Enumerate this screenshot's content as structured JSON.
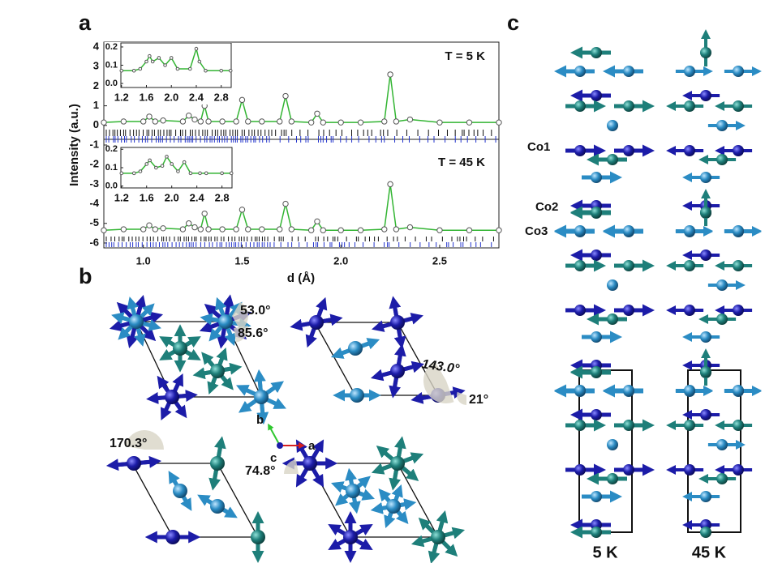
{
  "figure": {
    "panel_labels": [
      "a",
      "b",
      "c"
    ],
    "panel_b": {
      "angles": [
        "53.0°",
        "85.6°",
        "143.0°",
        "21°",
        "170.3°",
        "74.8°"
      ],
      "axes": [
        "b",
        "c",
        "a"
      ]
    },
    "panel_c": {
      "sites": [
        "Co1",
        "Co2",
        "Co3"
      ],
      "temperatures": [
        "5 K",
        "45 K"
      ]
    }
  },
  "chart_data": {
    "type": "line",
    "ylabel": "Intensity (a.u.)",
    "xlabel": "d (Å)",
    "xlim": [
      0.8,
      2.8
    ],
    "ylim": [
      -6.25,
      4.25
    ],
    "xticks": [
      {
        "value": 1,
        "label": "1.0"
      },
      1.5,
      {
        "value": 2,
        "label": "2.0"
      },
      2.5
    ],
    "yticks": [
      4,
      3,
      2,
      1,
      0,
      -1,
      -2,
      -3,
      -4,
      -5,
      -6
    ],
    "annotations": [
      "T = 5 K",
      "T = 45 K"
    ],
    "x": [
      0.8,
      0.9,
      1.0,
      1.03,
      1.06,
      1.1,
      1.2,
      1.23,
      1.26,
      1.29,
      1.31,
      1.33,
      1.4,
      1.47,
      1.5,
      1.53,
      1.6,
      1.69,
      1.72,
      1.75,
      1.85,
      1.88,
      1.91,
      2.0,
      2.1,
      2.22,
      2.25,
      2.28,
      2.35,
      2.5,
      2.65,
      2.8
    ],
    "series": [
      {
        "color": "#33b533",
        "values": [
          0.15,
          0.2,
          0.2,
          0.45,
          0.2,
          0.25,
          0.2,
          0.5,
          0.3,
          0.2,
          1.0,
          0.2,
          0.2,
          0.2,
          1.3,
          0.2,
          0.2,
          0.2,
          1.5,
          0.2,
          0.15,
          0.6,
          0.15,
          0.15,
          0.15,
          0.2,
          2.6,
          0.2,
          0.3,
          0.15,
          0.15,
          0.15
        ]
      },
      {
        "color": "#33b533",
        "values": [
          -5.35,
          -5.3,
          -5.3,
          -5.1,
          -5.3,
          -5.25,
          -5.3,
          -5.0,
          -5.2,
          -5.3,
          -4.5,
          -5.3,
          -5.3,
          -5.3,
          -4.3,
          -5.3,
          -5.3,
          -5.3,
          -4.0,
          -5.3,
          -5.35,
          -4.9,
          -5.35,
          -5.35,
          -5.35,
          -5.3,
          -3.0,
          -5.3,
          -5.2,
          -5.35,
          -5.35,
          -5.35
        ]
      }
    ],
    "insets": [
      {
        "xlim": [
          1.19,
          2.96
        ],
        "ylim": [
          -0.022,
          0.222
        ],
        "xticks": [
          1.2,
          1.6,
          {
            "value": 2,
            "label": "2.0"
          },
          2.4,
          2.8
        ],
        "yticks": [
          {
            "value": 0,
            "label": "0.0"
          },
          0.1,
          0.2
        ],
        "x": [
          1.2,
          1.4,
          1.5,
          1.6,
          1.65,
          1.7,
          1.8,
          1.9,
          2.0,
          2.1,
          2.3,
          2.4,
          2.45,
          2.55,
          2.8,
          2.95
        ],
        "values": [
          0.07,
          0.07,
          0.08,
          0.12,
          0.15,
          0.12,
          0.14,
          0.1,
          0.14,
          0.08,
          0.08,
          0.19,
          0.12,
          0.07,
          0.07,
          0.07
        ]
      },
      {
        "xlim": [
          1.19,
          2.96
        ],
        "ylim": [
          -0.01,
          0.21
        ],
        "xticks": [
          1.2,
          1.6,
          {
            "value": 2,
            "label": "2.0"
          },
          2.4,
          2.8
        ],
        "yticks": [
          {
            "value": 0,
            "label": "0.0"
          },
          0.1,
          0.2
        ],
        "x": [
          1.2,
          1.4,
          1.5,
          1.6,
          1.65,
          1.75,
          1.85,
          1.92,
          2.0,
          2.1,
          2.2,
          2.3,
          2.45,
          2.55,
          2.8,
          2.95
        ],
        "values": [
          0.07,
          0.07,
          0.08,
          0.12,
          0.14,
          0.1,
          0.11,
          0.16,
          0.12,
          0.08,
          0.13,
          0.07,
          0.07,
          0.07,
          0.07,
          0.07
        ]
      }
    ]
  }
}
